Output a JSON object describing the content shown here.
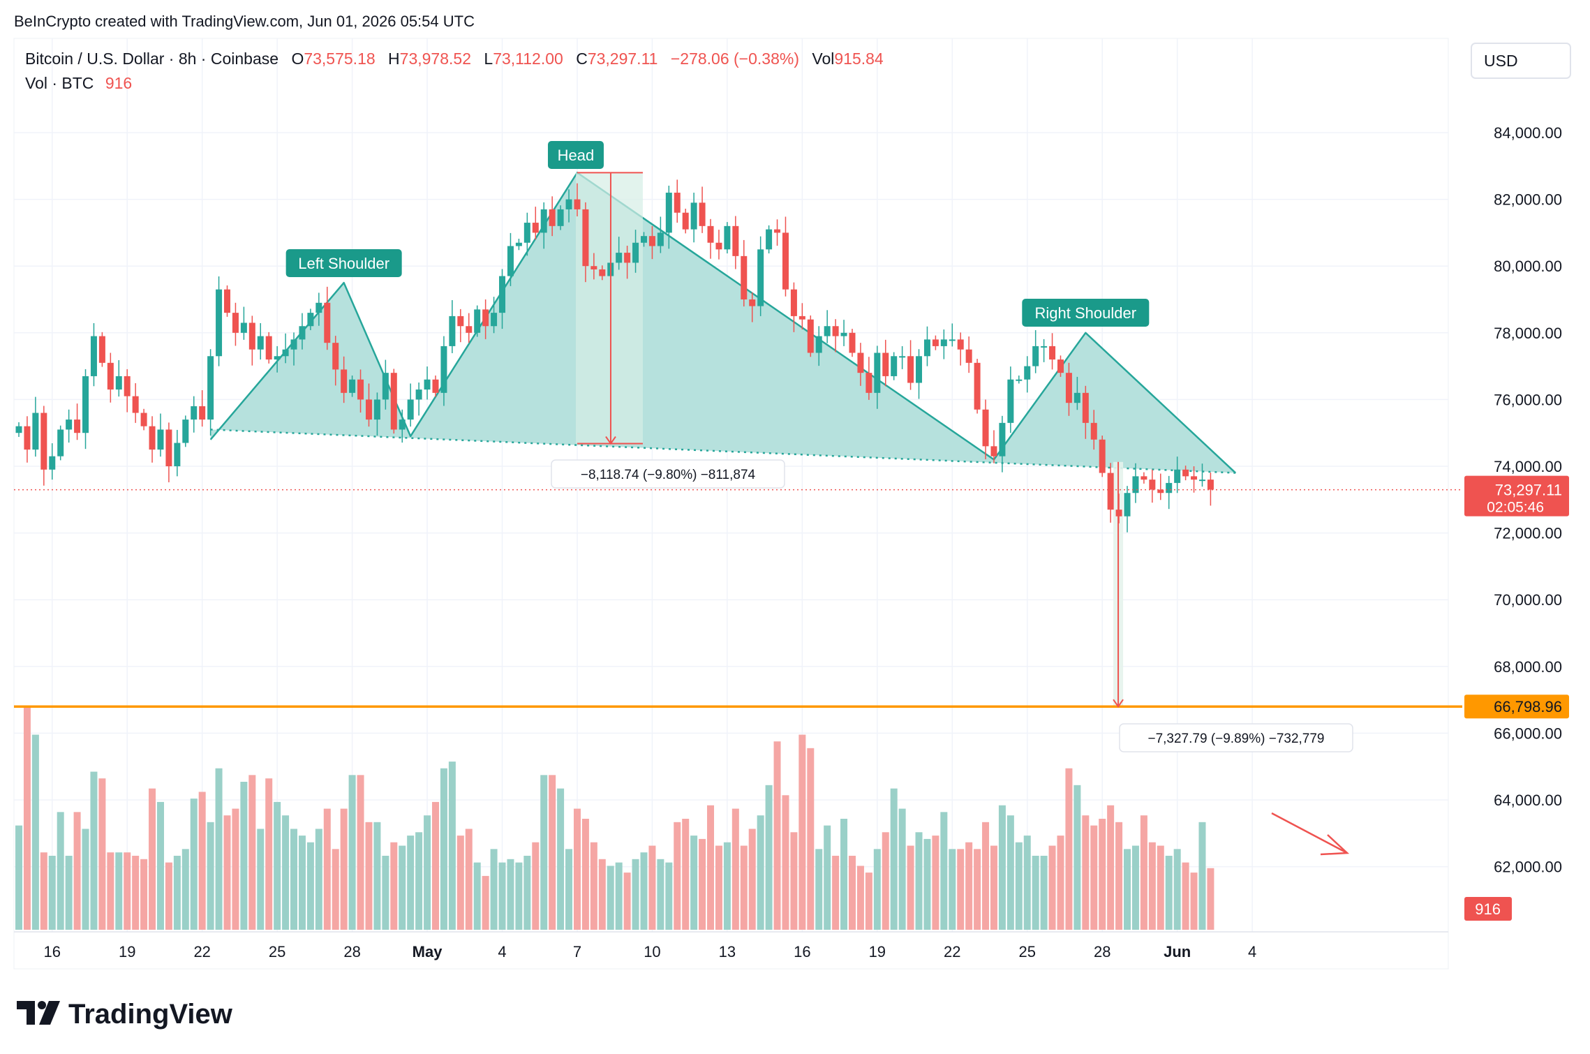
{
  "header": {
    "created_by": "BeInCrypto created with TradingView.com, Jun 01, 2026 05:54 UTC"
  },
  "legend": {
    "symbol": "Bitcoin / U.S. Dollar · 8h · Coinbase",
    "o_label": "O",
    "o_value": "73,575.18",
    "h_label": "H",
    "h_value": "73,978.52",
    "l_label": "L",
    "l_value": "73,112.00",
    "c_label": "C",
    "c_value": "73,297.11",
    "change": "−278.06 (−0.38%)",
    "vol_label": "Vol",
    "vol_value": "915.84",
    "vol_row_label": "Vol · BTC",
    "vol_row_value": "916"
  },
  "currency_button": "USD",
  "branding": "TradingView",
  "colors": {
    "up": "#26a69a",
    "down": "#ef5350",
    "target": "#ff9800",
    "pattern_fill": "#b2dfdb",
    "pattern_stroke": "#26a69a",
    "vol_up": "#9ad0c8",
    "vol_down": "#f5a6a4"
  },
  "chart_data": {
    "type": "candlestick",
    "title": "Bitcoin / U.S. Dollar · 8h · Coinbase",
    "timeframe": "8h",
    "ylim": [
      60000,
      86000
    ],
    "y_ticks": [
      "84,000.00",
      "82,000.00",
      "80,000.00",
      "78,000.00",
      "76,000.00",
      "74,000.00",
      "72,000.00",
      "70,000.00",
      "68,000.00",
      "66,000.00",
      "64,000.00",
      "62,000.00"
    ],
    "x_ticks": [
      {
        "label": "16",
        "bar": 4,
        "bold": false
      },
      {
        "label": "19",
        "bar": 13,
        "bold": false
      },
      {
        "label": "22",
        "bar": 22,
        "bold": false
      },
      {
        "label": "25",
        "bar": 31,
        "bold": false
      },
      {
        "label": "28",
        "bar": 40,
        "bold": false
      },
      {
        "label": "May",
        "bar": 49,
        "bold": true
      },
      {
        "label": "4",
        "bar": 58,
        "bold": false
      },
      {
        "label": "7",
        "bar": 67,
        "bold": false
      },
      {
        "label": "10",
        "bar": 76,
        "bold": false
      },
      {
        "label": "13",
        "bar": 85,
        "bold": false
      },
      {
        "label": "16",
        "bar": 94,
        "bold": false
      },
      {
        "label": "19",
        "bar": 103,
        "bold": false
      },
      {
        "label": "22",
        "bar": 112,
        "bold": false
      },
      {
        "label": "25",
        "bar": 121,
        "bold": false
      },
      {
        "label": "28",
        "bar": 130,
        "bold": false
      },
      {
        "label": "Jun",
        "bar": 139,
        "bold": true
      },
      {
        "label": "4",
        "bar": 148,
        "bold": false
      }
    ],
    "close": [
      75200,
      74500,
      75600,
      73900,
      74300,
      75100,
      75400,
      75000,
      76700,
      77900,
      77100,
      76300,
      76700,
      76100,
      75600,
      75200,
      74500,
      75100,
      74000,
      74700,
      75400,
      75800,
      75400,
      77300,
      79300,
      78600,
      78000,
      78300,
      77500,
      77900,
      77200,
      77300,
      77500,
      77800,
      78200,
      78600,
      78900,
      77700,
      76900,
      76200,
      76600,
      76000,
      75400,
      76000,
      76800,
      75100,
      75400,
      76000,
      76300,
      76600,
      76200,
      77600,
      78500,
      78200,
      78000,
      78700,
      78200,
      78600,
      79700,
      80600,
      80700,
      81300,
      81000,
      81700,
      81200,
      81700,
      82000,
      81700,
      80000,
      79900,
      79700,
      80100,
      80400,
      80100,
      80700,
      80900,
      80600,
      81000,
      82200,
      81600,
      81100,
      81900,
      81200,
      80700,
      80500,
      81200,
      80300,
      79000,
      78800,
      80500,
      81100,
      81000,
      79300,
      78500,
      78400,
      77400,
      77900,
      78200,
      77900,
      78000,
      77400,
      76800,
      76200,
      77400,
      76700,
      77300,
      77300,
      76500,
      77300,
      77800,
      77600,
      77800,
      77800,
      77500,
      77100,
      75700,
      74600,
      74300,
      75300,
      76600,
      76600,
      77000,
      77600,
      77600,
      77200,
      76800,
      75900,
      76200,
      75300,
      74800,
      73800,
      72700,
      72500,
      73200,
      73700,
      73600,
      73300,
      73200,
      73500,
      73900,
      73700,
      73600,
      73600,
      73300
    ],
    "open": [
      75000,
      75200,
      74500,
      75600,
      73900,
      74300,
      75100,
      75400,
      75000,
      76700,
      77900,
      77100,
      76300,
      76700,
      76100,
      75600,
      75200,
      74500,
      75100,
      74000,
      74700,
      75400,
      75800,
      75400,
      77300,
      79300,
      78600,
      78000,
      78300,
      77500,
      77900,
      77200,
      77300,
      77500,
      77800,
      78200,
      78600,
      78900,
      77700,
      76900,
      76200,
      76600,
      76000,
      75400,
      76000,
      76800,
      75100,
      75400,
      76000,
      76300,
      76600,
      76200,
      77600,
      78500,
      78200,
      78000,
      78700,
      78200,
      78600,
      79700,
      80600,
      80700,
      81300,
      81000,
      81700,
      81200,
      81700,
      82000,
      81700,
      80000,
      79900,
      79700,
      80100,
      80400,
      80100,
      80700,
      80900,
      80600,
      81000,
      82200,
      81600,
      81100,
      81900,
      81200,
      80700,
      80500,
      81200,
      80300,
      79000,
      78800,
      80500,
      81100,
      81000,
      79300,
      78500,
      78400,
      77400,
      77900,
      78200,
      77900,
      78000,
      77400,
      76800,
      76200,
      77400,
      76700,
      77300,
      77300,
      76500,
      77300,
      77800,
      77600,
      77800,
      77800,
      77500,
      77100,
      75700,
      74600,
      74300,
      75300,
      76600,
      76600,
      77000,
      77600,
      77600,
      77200,
      76800,
      75900,
      76200,
      75300,
      74800,
      73800,
      72700,
      72500,
      73200,
      73700,
      73600,
      73300,
      73200,
      73500,
      73900,
      73700,
      73600,
      73600
    ],
    "volume": [
      1550,
      3300,
      2900,
      1150,
      1100,
      1750,
      1100,
      1750,
      1500,
      2350,
      2250,
      1150,
      1150,
      1150,
      1100,
      1050,
      2100,
      1900,
      1000,
      1100,
      1200,
      1950,
      2050,
      1600,
      2400,
      1700,
      1800,
      2200,
      2300,
      1500,
      2250,
      1900,
      1700,
      1500,
      1400,
      1300,
      1500,
      1800,
      1200,
      1800,
      2300,
      2300,
      1600,
      1600,
      1100,
      1300,
      1250,
      1400,
      1450,
      1700,
      1900,
      2400,
      2500,
      1400,
      1500,
      1000,
      800,
      1200,
      1000,
      1050,
      1000,
      1100,
      1300,
      2300,
      2300,
      2100,
      1200,
      1800,
      1650,
      1300,
      1050,
      950,
      1000,
      850,
      1050,
      1150,
      1250,
      1050,
      1000,
      1600,
      1650,
      1400,
      1350,
      1850,
      1250,
      1300,
      1800,
      1250,
      1500,
      1700,
      2150,
      2800,
      2000,
      1450,
      2900,
      2700,
      1200,
      1550,
      1100,
      1650,
      1100,
      950,
      850,
      1200,
      1450,
      2100,
      1800,
      1250,
      1450,
      1350,
      1400,
      1750,
      1200,
      1200,
      1300,
      1200,
      1600,
      1250,
      1850,
      1700,
      1300,
      1400,
      1100,
      1100,
      1250,
      1400,
      2400,
      2150,
      1700,
      1550,
      1650,
      1850,
      1600,
      1200,
      1250,
      1700,
      1300,
      1250,
      1100,
      1200,
      1000,
      850,
      1600,
      916
    ],
    "current_price": {
      "value": 73297.11,
      "label": "73,297.11",
      "countdown": "02:05:46"
    },
    "volume_badge": "916",
    "target_level": {
      "value": 66798.96,
      "label": "66,798.96"
    },
    "pattern": {
      "name": "Head and Shoulders",
      "labels": [
        "Left Shoulder",
        "Head",
        "Right Shoulder"
      ],
      "points": [
        {
          "bar": 23,
          "price": 74800
        },
        {
          "bar": 39,
          "price": 79500
        },
        {
          "bar": 47,
          "price": 74900
        },
        {
          "bar": 67,
          "price": 82800
        },
        {
          "bar": 117,
          "price": 74200
        },
        {
          "bar": 128,
          "price": 78000
        },
        {
          "bar": 146,
          "price": 73800
        }
      ],
      "neckline": [
        {
          "bar": 23,
          "price": 75100
        },
        {
          "bar": 146,
          "price": 73800
        }
      ]
    },
    "measurements": [
      {
        "label": "−8,118.74 (−9.80%) −811,874",
        "bar": 67,
        "from": 82800,
        "to": 74680
      },
      {
        "label": "−7,327.79 (−9.89%) −732,779",
        "bar": 132,
        "from": 74130,
        "to": 66798.96
      }
    ],
    "volume_trend": "down"
  }
}
